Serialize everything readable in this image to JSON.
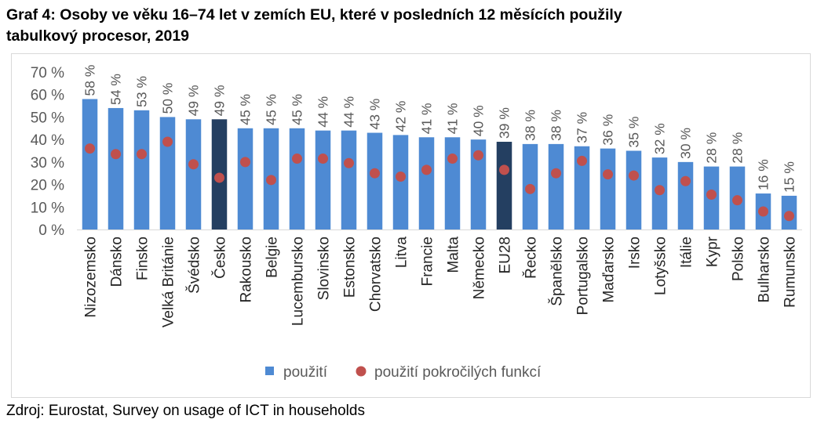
{
  "title_line1": "Graf 4: Osoby ve věku 16–74 let v zemích EU, které v posledních 12 měsících použily",
  "title_line2": "tabulkový procesor, 2019",
  "source": "Zdroj: Eurostat, Survey on usage of ICT in households",
  "colors": {
    "bar": "#4e8ad3",
    "bar_highlight": "#243f61",
    "dot": "#c0504d",
    "axis": "#d9d9d9",
    "text": "#595959"
  },
  "chart_data": {
    "type": "bar",
    "categories": [
      "Nizozemsko",
      "Dánsko",
      "Finsko",
      "Velká Británie",
      "Švédsko",
      "Česko",
      "Rakousko",
      "Belgie",
      "Lucembursko",
      "Slovinsko",
      "Estonsko",
      "Chorvatsko",
      "Litva",
      "Francie",
      "Malta",
      "Německo",
      "EU28",
      "Řecko",
      "Španělsko",
      "Portugalsko",
      "Maďarsko",
      "Irsko",
      "Lotyšsko",
      "Itálie",
      "Kypr",
      "Polsko",
      "Bulharsko",
      "Rumunsko"
    ],
    "highlight": [
      "Česko",
      "EU28"
    ],
    "series": [
      {
        "name": "použití",
        "type": "bar",
        "values": [
          58,
          54,
          53,
          50,
          49,
          49,
          45,
          45,
          45,
          44,
          44,
          43,
          42,
          41,
          41,
          40,
          39,
          38,
          38,
          37,
          36,
          35,
          32,
          30,
          28,
          28,
          16,
          15
        ],
        "labels": [
          "58 %",
          "54 %",
          "53 %",
          "50 %",
          "49 %",
          "49 %",
          "45 %",
          "45 %",
          "45 %",
          "44 %",
          "44 %",
          "43 %",
          "42 %",
          "41 %",
          "41 %",
          "40 %",
          "39 %",
          "38 %",
          "38 %",
          "37 %",
          "36 %",
          "35 %",
          "32 %",
          "30 %",
          "28 %",
          "28 %",
          "16 %",
          "15 %"
        ]
      },
      {
        "name": "použití pokročilých funkcí",
        "type": "scatter",
        "values": [
          36,
          33.5,
          33.5,
          39,
          29,
          23,
          30,
          22,
          31.5,
          31.5,
          29.5,
          25,
          23.5,
          26.5,
          31.5,
          33,
          26.5,
          18,
          25,
          30.5,
          24.5,
          24,
          17.5,
          21.5,
          15.5,
          13,
          8,
          6
        ]
      }
    ],
    "ylim": [
      0,
      70
    ],
    "yticks": [
      "0 %",
      "10 %",
      "20 %",
      "30 %",
      "40 %",
      "50 %",
      "60 %",
      "70 %"
    ],
    "grid": false,
    "legend_position": "bottom"
  }
}
